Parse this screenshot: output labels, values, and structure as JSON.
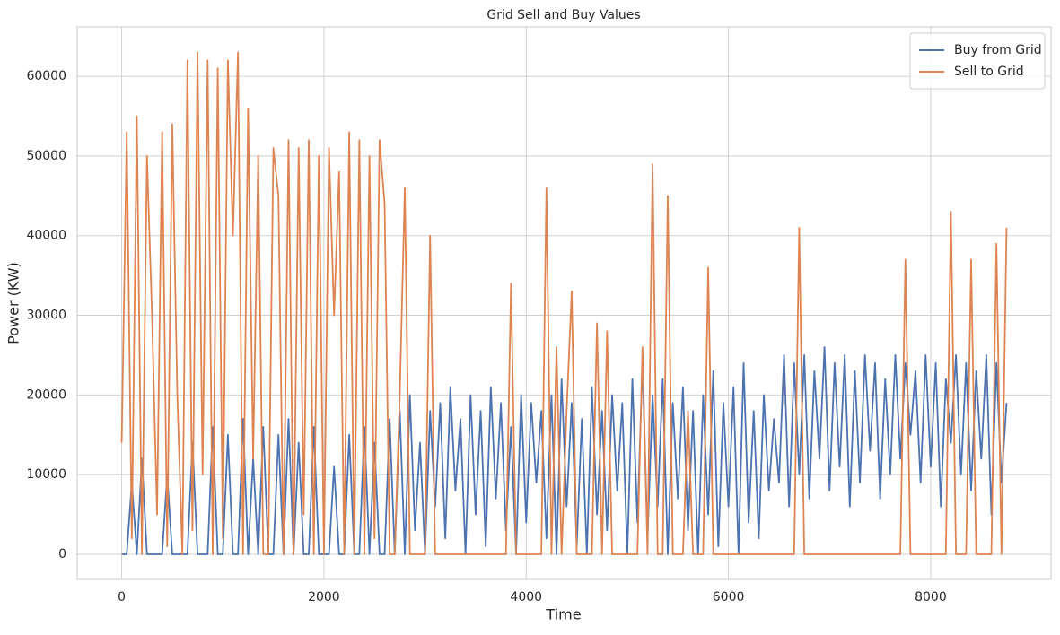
{
  "chart_data": {
    "type": "line",
    "title": "Grid Sell and Buy Values",
    "x_label": "Time",
    "y_label": "Power (KW)",
    "xlim": [
      -440,
      9190
    ],
    "ylim": [
      -3150,
      66200
    ],
    "xticks": [
      0,
      2000,
      4000,
      6000,
      8000
    ],
    "yticks": [
      0,
      10000,
      20000,
      30000,
      40000,
      50000,
      60000
    ],
    "grid": true,
    "legend": "upper right",
    "x": [
      0,
      50,
      100,
      150,
      200,
      250,
      300,
      350,
      400,
      450,
      500,
      550,
      600,
      650,
      700,
      750,
      800,
      850,
      900,
      950,
      1000,
      1050,
      1100,
      1150,
      1200,
      1250,
      1300,
      1350,
      1400,
      1450,
      1500,
      1550,
      1600,
      1650,
      1700,
      1750,
      1800,
      1850,
      1900,
      1950,
      2000,
      2050,
      2100,
      2150,
      2200,
      2250,
      2300,
      2350,
      2400,
      2450,
      2500,
      2550,
      2600,
      2650,
      2700,
      2750,
      2800,
      2850,
      2900,
      2950,
      3000,
      3050,
      3100,
      3150,
      3200,
      3250,
      3300,
      3350,
      3400,
      3450,
      3500,
      3550,
      3600,
      3650,
      3700,
      3750,
      3800,
      3850,
      3900,
      3950,
      4000,
      4050,
      4100,
      4150,
      4200,
      4250,
      4300,
      4350,
      4400,
      4450,
      4500,
      4550,
      4600,
      4650,
      4700,
      4750,
      4800,
      4850,
      4900,
      4950,
      5000,
      5050,
      5100,
      5150,
      5200,
      5250,
      5300,
      5350,
      5400,
      5450,
      5500,
      5550,
      5600,
      5650,
      5700,
      5750,
      5800,
      5850,
      5900,
      5950,
      6000,
      6050,
      6100,
      6150,
      6200,
      6250,
      6300,
      6350,
      6400,
      6450,
      6500,
      6550,
      6600,
      6650,
      6700,
      6750,
      6800,
      6850,
      6900,
      6950,
      7000,
      7050,
      7100,
      7150,
      7200,
      7250,
      7300,
      7350,
      7400,
      7450,
      7500,
      7550,
      7600,
      7650,
      7700,
      7750,
      7800,
      7850,
      7900,
      7950,
      8000,
      8050,
      8100,
      8150,
      8200,
      8250,
      8300,
      8350,
      8400,
      8450,
      8500,
      8550,
      8600,
      8650,
      8700,
      8750
    ],
    "series": [
      {
        "name": "Buy from Grid",
        "color": "#4c72b0",
        "values": [
          0,
          0,
          9000,
          0,
          12000,
          0,
          0,
          0,
          0,
          10000,
          0,
          0,
          0,
          0,
          14000,
          0,
          0,
          0,
          16000,
          0,
          0,
          15000,
          0,
          0,
          17000,
          0,
          12000,
          0,
          16000,
          0,
          0,
          15000,
          0,
          17000,
          0,
          14000,
          0,
          0,
          16000,
          0,
          0,
          0,
          11000,
          0,
          0,
          15000,
          0,
          0,
          16000,
          0,
          14000,
          0,
          0,
          17000,
          0,
          18000,
          0,
          20000,
          3000,
          14000,
          0,
          18000,
          6000,
          19000,
          2000,
          21000,
          8000,
          17000,
          0,
          20000,
          5000,
          18000,
          1000,
          21000,
          7000,
          19000,
          3000,
          16000,
          0,
          20000,
          4000,
          19000,
          9000,
          18000,
          2000,
          20000,
          0,
          22000,
          6000,
          19000,
          1000,
          17000,
          0,
          21000,
          5000,
          18000,
          3000,
          20000,
          8000,
          19000,
          0,
          22000,
          4000,
          24000,
          2000,
          20000,
          6000,
          22000,
          0,
          19000,
          7000,
          21000,
          3000,
          18000,
          0,
          20000,
          5000,
          23000,
          1000,
          19000,
          6000,
          21000,
          0,
          24000,
          4000,
          18000,
          2000,
          20000,
          8000,
          17000,
          9000,
          25000,
          6000,
          24000,
          10000,
          25000,
          7000,
          23000,
          12000,
          26000,
          8000,
          24000,
          11000,
          25000,
          6000,
          23000,
          9000,
          25000,
          13000,
          24000,
          7000,
          22000,
          10000,
          25000,
          12000,
          24000,
          15000,
          23000,
          9000,
          25000,
          11000,
          24000,
          6000,
          22000,
          14000,
          25000,
          10000,
          24000,
          8000,
          23000,
          12000,
          25000,
          5000,
          24000,
          9000,
          19000
        ]
      },
      {
        "name": "Sell to Grid",
        "color": "#dd8452",
        "values": [
          14000,
          53000,
          2000,
          55000,
          0,
          50000,
          30000,
          5000,
          53000,
          1000,
          54000,
          20000,
          0,
          62000,
          3000,
          63000,
          10000,
          62000,
          0,
          61000,
          2000,
          62000,
          40000,
          63000,
          0,
          56000,
          12000,
          50000,
          0,
          0,
          51000,
          45000,
          0,
          52000,
          0,
          51000,
          5000,
          52000,
          0,
          50000,
          0,
          51000,
          30000,
          48000,
          0,
          53000,
          0,
          52000,
          0,
          50000,
          2000,
          52000,
          44000,
          0,
          0,
          20000,
          46000,
          0,
          0,
          0,
          0,
          40000,
          0,
          0,
          0,
          0,
          0,
          0,
          0,
          0,
          0,
          0,
          0,
          0,
          0,
          0,
          0,
          34000,
          0,
          0,
          0,
          0,
          0,
          0,
          46000,
          0,
          26000,
          0,
          18000,
          33000,
          0,
          0,
          0,
          0,
          29000,
          0,
          28000,
          0,
          0,
          0,
          0,
          0,
          0,
          26000,
          0,
          49000,
          0,
          0,
          45000,
          0,
          0,
          0,
          18000,
          0,
          0,
          0,
          36000,
          0,
          0,
          0,
          0,
          0,
          0,
          0,
          0,
          0,
          0,
          0,
          0,
          0,
          0,
          0,
          0,
          0,
          41000,
          0,
          0,
          0,
          0,
          0,
          0,
          0,
          0,
          0,
          0,
          0,
          0,
          0,
          0,
          0,
          0,
          0,
          0,
          0,
          0,
          37000,
          0,
          0,
          0,
          0,
          0,
          0,
          0,
          0,
          43000,
          0,
          0,
          0,
          37000,
          0,
          0,
          0,
          0,
          39000,
          0,
          41000
        ]
      }
    ]
  }
}
